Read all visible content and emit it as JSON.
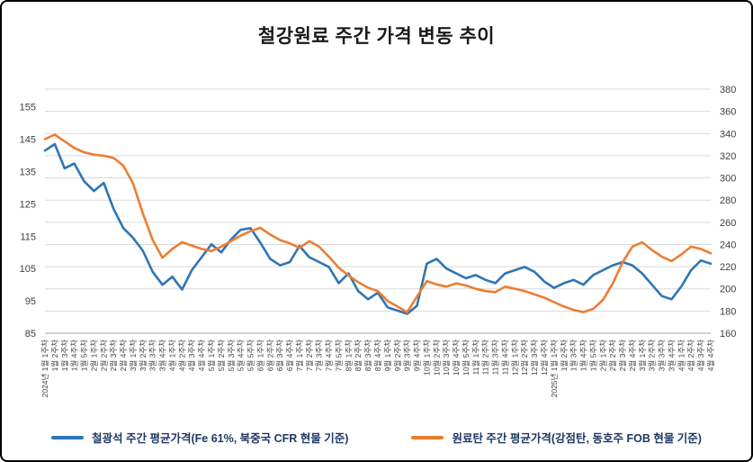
{
  "title": "철강원료 주간 가격 변동 추이",
  "colors": {
    "iron_ore_line": "#2E75B6",
    "coking_coal_line": "#ED7D31",
    "gridline": "#d9d9d9",
    "axis_line": "#a6a6a6",
    "axis_text": "#404040",
    "legend_text": "#1f3864",
    "border": "#000000"
  },
  "chart_data": {
    "type": "line",
    "title": "철강원료 주간 가격 변동 추이",
    "grid": "horizontal",
    "legend_position": "bottom",
    "left_axis": {
      "min": 85,
      "max": 160.5,
      "ticks": [
        85,
        95,
        105,
        115,
        125,
        135,
        145,
        155
      ]
    },
    "right_axis": {
      "min": 160,
      "max": 380,
      "ticks": [
        160,
        180,
        200,
        220,
        240,
        260,
        280,
        300,
        320,
        340,
        360,
        380
      ]
    },
    "categories": [
      "2024년 1월 1주차",
      "1월 2주차",
      "1월 3주차",
      "1월 4주차",
      "1월 5주차",
      "2월 1주차",
      "2월 2주차",
      "2월 3주차",
      "2월 4주차",
      "3월 1주차",
      "3월 2주차",
      "3월 3주차",
      "3월 4주차",
      "4월 1주차",
      "4월 2주차",
      "4월 3주차",
      "4월 4주차",
      "5월 1주차",
      "5월 2주차",
      "5월 3주차",
      "5월 4주차",
      "5월 5주차",
      "6월 1주차",
      "6월 2주차",
      "6월 3주차",
      "6월 4주차",
      "7월 1주차",
      "7월 2주차",
      "7월 3주차",
      "7월 4주차",
      "7월 5주차",
      "8월 1주차",
      "8월 2주차",
      "8월 3주차",
      "8월 4주차",
      "9월 1주차",
      "9월 2주차",
      "9월 3주차",
      "9월 4주차",
      "10월 1주차",
      "10월 2주차",
      "10월 3주차",
      "10월 4주차",
      "10월 5주차",
      "11월 1주차",
      "11월 2주차",
      "11월 3주차",
      "11월 4주차",
      "12월 1주차",
      "12월 2주차",
      "12월 3주차",
      "12월 4주차",
      "2025년 1월 1주차",
      "1월 2주차",
      "1월 3주차",
      "1월 4주차",
      "1월 5주차",
      "2월 1주차",
      "2월 2주차",
      "2월 3주차",
      "2월 4주차",
      "3월 1주차",
      "3월 2주차",
      "3월 3주차",
      "3월 4주차",
      "4월 1주차",
      "4월 2주차",
      "4월 3주차",
      "4월 4주차"
    ],
    "series": [
      {
        "name": "철광석 주간 평균가격(Fe 61%, 북중국 CFR 현물 기준)",
        "axis": "left",
        "color": "#2E75B6",
        "values": [
          141.5,
          143.5,
          136.0,
          137.5,
          132.0,
          129.0,
          131.5,
          123.5,
          117.5,
          114.5,
          110.5,
          104.0,
          100.0,
          102.5,
          98.5,
          104.5,
          108.5,
          112.5,
          110.0,
          114.0,
          117.0,
          117.5,
          113.0,
          108.0,
          106.0,
          107.0,
          112.0,
          108.5,
          107.0,
          105.5,
          100.5,
          103.5,
          98.0,
          95.5,
          97.5,
          93.0,
          92.0,
          91.0,
          93.5,
          106.5,
          108.0,
          105.0,
          103.5,
          102.0,
          103.0,
          101.5,
          100.5,
          103.5,
          104.5,
          105.5,
          104.0,
          101.0,
          99.0,
          100.5,
          101.5,
          100.0,
          103.0,
          104.5,
          106.0,
          107.0,
          106.0,
          103.5,
          100.0,
          96.5,
          95.5,
          99.5,
          104.5,
          107.5,
          106.5
        ]
      },
      {
        "name": "원료탄 주간 평균가격(강점탄, 동호주 FOB 현물 기준)",
        "axis": "right",
        "color": "#ED7D31",
        "values": [
          335,
          339,
          333,
          327,
          323,
          321,
          320,
          318,
          311,
          295,
          268,
          244,
          228,
          236,
          242,
          239,
          236,
          234,
          238,
          243,
          248,
          252,
          255,
          249,
          244,
          241,
          237,
          243,
          238,
          229,
          219,
          212,
          206,
          201,
          198,
          189,
          184,
          179,
          193,
          207,
          204,
          202,
          205,
          203,
          200,
          198,
          197,
          202,
          200,
          198,
          195,
          192,
          188,
          184,
          181,
          179,
          182,
          190,
          205,
          224,
          238,
          242,
          235,
          229,
          225,
          231,
          238,
          236,
          232
        ]
      }
    ]
  }
}
